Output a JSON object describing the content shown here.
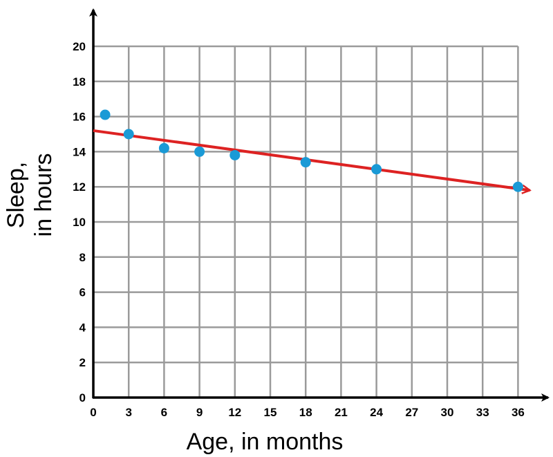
{
  "chart_data": {
    "type": "scatter",
    "title": "",
    "xlabel": "Age, in months",
    "ylabel_lines": [
      "Sleep,",
      "in hours"
    ],
    "xlim": [
      0,
      37
    ],
    "ylim": [
      0,
      20
    ],
    "x_ticks": [
      0,
      3,
      6,
      9,
      12,
      15,
      18,
      21,
      24,
      27,
      30,
      33,
      36
    ],
    "y_ticks": [
      0,
      2,
      4,
      6,
      8,
      10,
      12,
      14,
      16,
      18,
      20
    ],
    "grid": true,
    "points": [
      {
        "x": 1,
        "y": 16.1
      },
      {
        "x": 3,
        "y": 15.0
      },
      {
        "x": 6,
        "y": 14.2
      },
      {
        "x": 9,
        "y": 14.0
      },
      {
        "x": 12,
        "y": 13.8
      },
      {
        "x": 18,
        "y": 13.4
      },
      {
        "x": 24,
        "y": 13.0
      },
      {
        "x": 36,
        "y": 12.0
      }
    ],
    "trend_line": {
      "x0": 0,
      "y0": 15.2,
      "x1": 37,
      "y1": 11.8
    },
    "colors": {
      "points": "#1a9ad6",
      "trend_line": "#dd2222",
      "grid": "#9a9a9a",
      "axes": "#000000"
    }
  }
}
